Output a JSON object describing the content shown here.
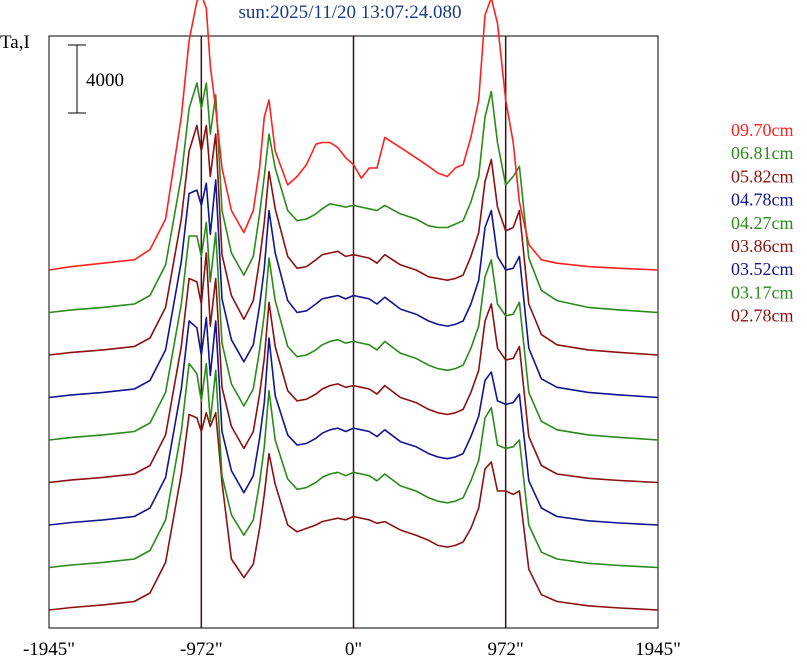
{
  "chart_data": {
    "type": "line",
    "title": "sun:2025/11/20 13:07:24.080",
    "ylabel": "Ta,I",
    "scale_bar_label": "4000",
    "scale_bar_value": 4000,
    "xlim": [
      -1945,
      1945
    ],
    "x_ticks": [
      {
        "value": -1945,
        "label": "-1945\""
      },
      {
        "value": -972,
        "label": "-972\""
      },
      {
        "value": 0,
        "label": "0\""
      },
      {
        "value": 972,
        "label": "972\""
      },
      {
        "value": 1945,
        "label": "1945\""
      }
    ],
    "vertical_lines": [
      -972,
      0,
      972
    ],
    "x": [
      -1945,
      -1800,
      -1600,
      -1400,
      -1300,
      -1200,
      -1100,
      -1050,
      -1000,
      -972,
      -940,
      -915,
      -880,
      -840,
      -780,
      -700,
      -640,
      -600,
      -570,
      -540,
      -500,
      -420,
      -360,
      -300,
      -240,
      -200,
      -150,
      -100,
      -50,
      0,
      50,
      100,
      150,
      200,
      300,
      400,
      480,
      540,
      600,
      650,
      700,
      750,
      800,
      840,
      880,
      920,
      972,
      1020,
      1060,
      1120,
      1200,
      1300,
      1500,
      1700,
      1945
    ],
    "series": [
      {
        "name": "09.70cm",
        "color": "#ff2020",
        "values": [
          0,
          200,
          400,
          600,
          1200,
          3000,
          9000,
          13500,
          15800,
          16200,
          15400,
          12000,
          9500,
          6000,
          3500,
          2200,
          3500,
          6000,
          9000,
          10000,
          7000,
          5000,
          5500,
          6200,
          7400,
          7500,
          7500,
          7200,
          6600,
          6200,
          5400,
          6000,
          6000,
          7800,
          7200,
          6600,
          6100,
          5700,
          5500,
          6000,
          6200,
          7800,
          10000,
          15000,
          16000,
          14500,
          10000,
          7500,
          4000,
          1500,
          600,
          400,
          200,
          100,
          0
        ]
      },
      {
        "name": "06.81cm",
        "color": "#2a8a1a",
        "values": [
          0,
          150,
          300,
          500,
          1000,
          2800,
          8000,
          12000,
          13500,
          12000,
          13500,
          10500,
          12800,
          6000,
          3500,
          2200,
          3300,
          5800,
          8000,
          10500,
          8500,
          6000,
          5400,
          5500,
          5800,
          6100,
          6400,
          6300,
          6200,
          6300,
          6200,
          6100,
          6000,
          6300,
          5800,
          5500,
          5100,
          5000,
          5000,
          5200,
          5400,
          6500,
          8000,
          11500,
          13000,
          10000,
          7500,
          8000,
          8600,
          3200,
          1300,
          700,
          300,
          150,
          0
        ]
      },
      {
        "name": "05.82cm",
        "color": "#8b1010",
        "values": [
          0,
          150,
          300,
          500,
          1000,
          2800,
          8000,
          12000,
          13500,
          12000,
          13500,
          10500,
          13000,
          5900,
          3500,
          2100,
          3200,
          5600,
          7800,
          10800,
          8600,
          5800,
          5100,
          5200,
          5600,
          5900,
          6000,
          6100,
          5800,
          5900,
          5800,
          5700,
          5400,
          5900,
          5300,
          5000,
          4600,
          4500,
          4400,
          4500,
          4700,
          5800,
          7200,
          10200,
          11500,
          8700,
          7300,
          7500,
          8500,
          3000,
          1200,
          600,
          300,
          150,
          0
        ]
      },
      {
        "name": "04.78cm",
        "color": "#101590",
        "values": [
          0,
          150,
          300,
          500,
          1000,
          2800,
          8000,
          12000,
          12200,
          11300,
          12600,
          9600,
          12800,
          5800,
          3400,
          2100,
          3100,
          5400,
          7600,
          11000,
          8500,
          5700,
          5000,
          5100,
          5500,
          5800,
          5900,
          6000,
          5800,
          6000,
          5900,
          5800,
          5500,
          5900,
          5200,
          4900,
          4500,
          4300,
          4200,
          4300,
          4500,
          5500,
          6900,
          10000,
          11000,
          8300,
          7500,
          7600,
          8300,
          2900,
          1100,
          600,
          300,
          150,
          0
        ]
      },
      {
        "name": "04.27cm",
        "color": "#2a8a1a",
        "values": [
          0,
          150,
          300,
          500,
          1000,
          2800,
          8000,
          12000,
          12000,
          10800,
          12800,
          9300,
          12200,
          5700,
          3300,
          2000,
          3000,
          5300,
          7400,
          10700,
          8200,
          5500,
          4900,
          5000,
          5300,
          5600,
          5800,
          5900,
          5700,
          5800,
          5700,
          5600,
          5300,
          5800,
          5100,
          4800,
          4400,
          4200,
          4100,
          4200,
          4400,
          5400,
          6700,
          9600,
          10600,
          8000,
          7300,
          7400,
          8100,
          2800,
          1100,
          600,
          300,
          150,
          0
        ]
      },
      {
        "name": "03.86cm",
        "color": "#8b1010",
        "values": [
          0,
          150,
          300,
          500,
          1000,
          2800,
          8000,
          12000,
          11800,
          10500,
          13500,
          9200,
          12000,
          5600,
          3300,
          2000,
          3000,
          5200,
          7300,
          10600,
          8000,
          5400,
          4800,
          4900,
          5200,
          5500,
          5700,
          5800,
          5600,
          5700,
          5600,
          5500,
          5200,
          5700,
          5000,
          4700,
          4300,
          4100,
          4000,
          4100,
          4300,
          5300,
          6600,
          9500,
          10500,
          7900,
          7200,
          7300,
          8000,
          2700,
          1000,
          500,
          250,
          120,
          0
        ]
      },
      {
        "name": "03.52cm",
        "color": "#101590",
        "values": [
          0,
          150,
          300,
          500,
          1000,
          2800,
          8000,
          12000,
          11600,
          10000,
          12200,
          8800,
          12000,
          5500,
          3200,
          1900,
          2900,
          5100,
          7200,
          11000,
          7600,
          5300,
          4700,
          4800,
          5100,
          5400,
          5600,
          5700,
          5500,
          5700,
          5600,
          5500,
          5200,
          5600,
          4900,
          4600,
          4200,
          4000,
          3900,
          4000,
          4200,
          5200,
          6400,
          8500,
          9000,
          7300,
          7100,
          7200,
          7700,
          2600,
          1000,
          500,
          250,
          120,
          0
        ]
      },
      {
        "name": "03.17cm",
        "color": "#2a8a1a",
        "values": [
          0,
          150,
          300,
          500,
          1000,
          2800,
          8000,
          12000,
          11400,
          9800,
          12000,
          8600,
          11600,
          5400,
          3100,
          1900,
          2800,
          5000,
          7100,
          10400,
          7500,
          5200,
          4600,
          4700,
          5000,
          5300,
          5500,
          5600,
          5400,
          5600,
          5500,
          5400,
          5100,
          5500,
          4800,
          4500,
          4100,
          3900,
          3800,
          3900,
          4100,
          5100,
          6300,
          8800,
          9400,
          7200,
          7000,
          7100,
          7500,
          2500,
          900,
          500,
          250,
          120,
          0
        ]
      },
      {
        "name": "02.78cm",
        "color": "#8b1010",
        "values": [
          0,
          150,
          300,
          500,
          1000,
          2800,
          8000,
          11500,
          11300,
          10500,
          11600,
          10800,
          11600,
          7500,
          3000,
          1900,
          2700,
          4800,
          6800,
          9200,
          7400,
          5000,
          4600,
          4800,
          5000,
          5200,
          5300,
          5400,
          5300,
          5500,
          5400,
          5300,
          5100,
          5200,
          4700,
          4400,
          4100,
          3800,
          3700,
          3800,
          4000,
          4800,
          6000,
          8300,
          8700,
          7000,
          7000,
          6800,
          7000,
          2400,
          900,
          500,
          250,
          120,
          0
        ]
      }
    ],
    "grid": false,
    "legend_position": "right"
  }
}
